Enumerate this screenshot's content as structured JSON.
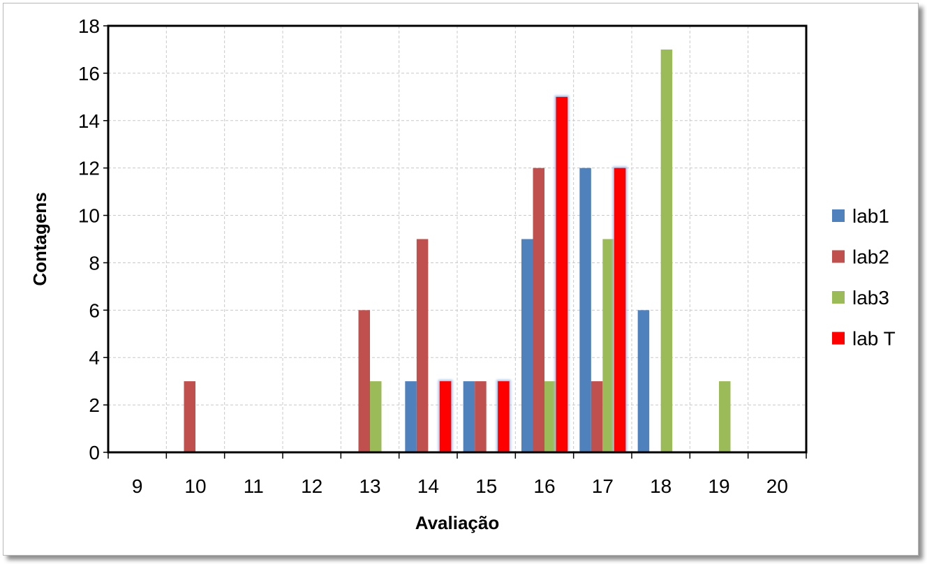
{
  "chart_data": {
    "type": "bar",
    "title": "",
    "xlabel": "Avaliação",
    "ylabel": "Contagens",
    "categories": [
      "9",
      "10",
      "11",
      "12",
      "13",
      "14",
      "15",
      "16",
      "17",
      "18",
      "19",
      "20"
    ],
    "ylim": [
      0,
      18
    ],
    "yticks": [
      0,
      2,
      4,
      6,
      8,
      10,
      12,
      14,
      16,
      18
    ],
    "grid": true,
    "legend_position": "right",
    "series": [
      {
        "name": "lab1",
        "color": "#4F81BD",
        "values": [
          0,
          0,
          0,
          0,
          0,
          3,
          3,
          9,
          12,
          6,
          0,
          0
        ]
      },
      {
        "name": "lab2",
        "color": "#C0504D",
        "values": [
          0,
          3,
          0,
          0,
          6,
          9,
          3,
          12,
          3,
          0,
          0,
          0
        ]
      },
      {
        "name": "lab3",
        "color": "#9BBB59",
        "values": [
          0,
          0,
          0,
          0,
          3,
          0,
          0,
          3,
          9,
          17,
          3,
          0
        ]
      },
      {
        "name": "lab T",
        "color": "#FF0000",
        "values": [
          0,
          0,
          0,
          0,
          0,
          3,
          3,
          15,
          12,
          0,
          0,
          0
        ]
      }
    ]
  }
}
